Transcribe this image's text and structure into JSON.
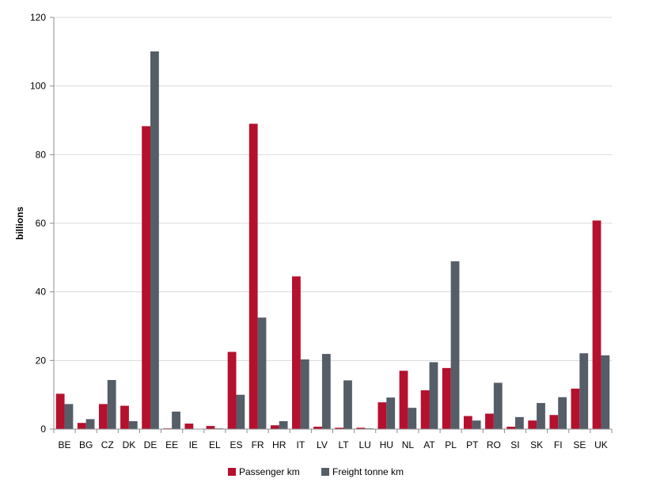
{
  "chart_data": {
    "type": "bar",
    "title": "",
    "xlabel": "",
    "ylabel": "billions",
    "ylim": [
      0,
      120
    ],
    "yticks": [
      0,
      20,
      40,
      60,
      80,
      100,
      120
    ],
    "grid": true,
    "legend_position": "bottom",
    "categories": [
      "BE",
      "BG",
      "CZ",
      "DK",
      "DE",
      "EE",
      "IE",
      "EL",
      "ES",
      "FR",
      "HR",
      "IT",
      "LV",
      "LT",
      "LU",
      "HU",
      "NL",
      "AT",
      "PL",
      "PT",
      "RO",
      "SI",
      "SK",
      "FI",
      "SE",
      "UK"
    ],
    "series": [
      {
        "name": "Passenger km",
        "color": "#b5102e",
        "values": [
          10.3,
          1.8,
          7.3,
          6.8,
          88.3,
          0.2,
          1.6,
          0.9,
          22.5,
          89.0,
          1.1,
          44.5,
          0.7,
          0.4,
          0.4,
          7.8,
          17.0,
          11.3,
          17.8,
          3.8,
          4.5,
          0.7,
          2.5,
          4.1,
          11.8,
          60.8
        ]
      },
      {
        "name": "Freight tonne km",
        "color": "#555d67",
        "values": [
          7.3,
          2.9,
          14.3,
          2.3,
          110.1,
          5.1,
          0.1,
          0.2,
          10.0,
          32.5,
          2.3,
          20.3,
          21.9,
          14.2,
          0.2,
          9.2,
          6.2,
          19.5,
          48.9,
          2.5,
          13.5,
          3.5,
          7.6,
          9.3,
          22.1,
          21.5
        ]
      }
    ]
  }
}
